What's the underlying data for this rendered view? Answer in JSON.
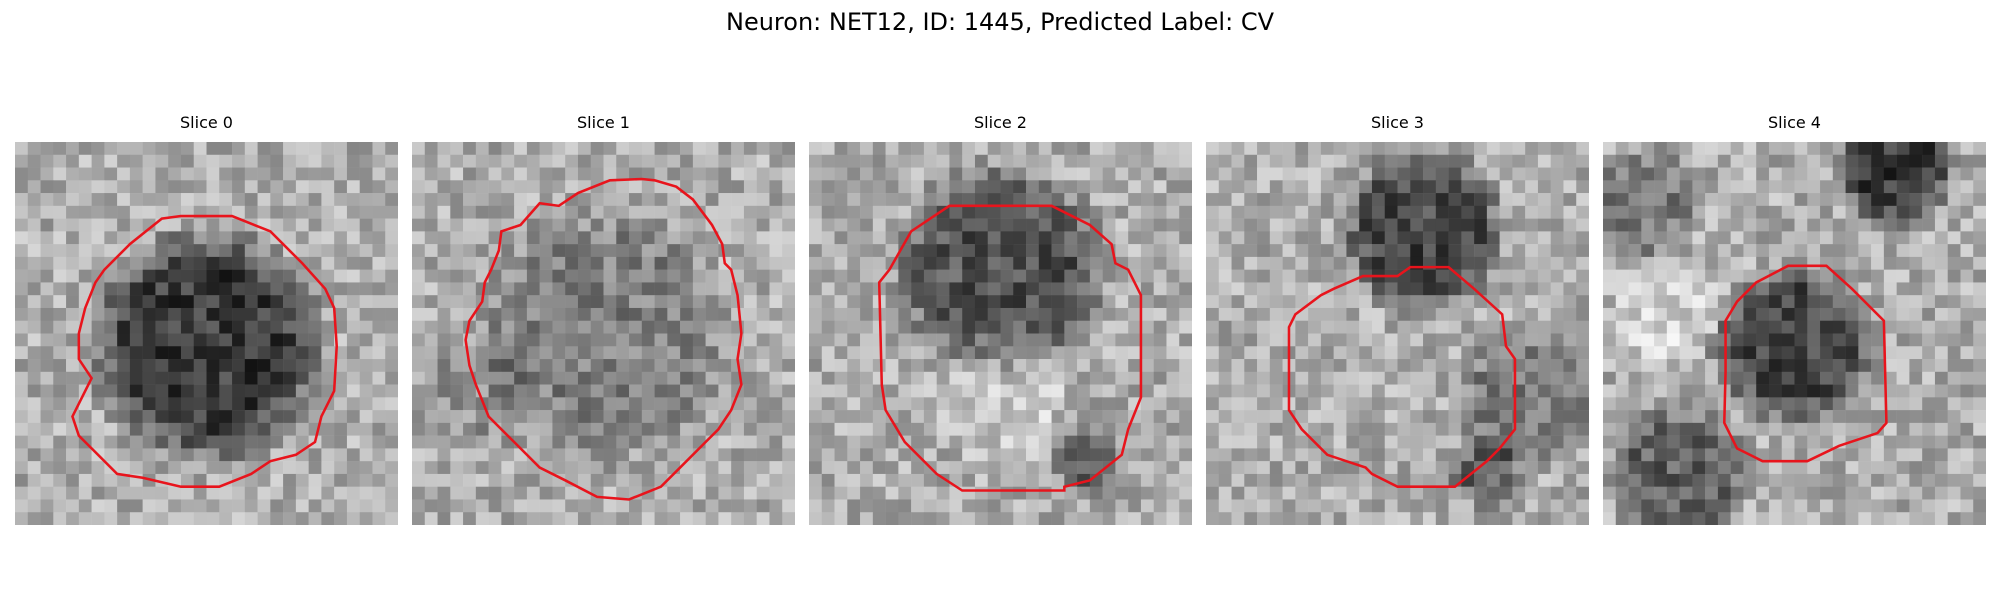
{
  "figure": {
    "title": "Neuron: NET12, ID: 1445, Predicted Label: CV"
  },
  "colors": {
    "contour": "#e8141c"
  },
  "slices": [
    {
      "label": "Slice 0"
    },
    {
      "label": "Slice 1"
    },
    {
      "label": "Slice 2"
    },
    {
      "label": "Slice 3"
    },
    {
      "label": "Slice 4"
    }
  ]
}
